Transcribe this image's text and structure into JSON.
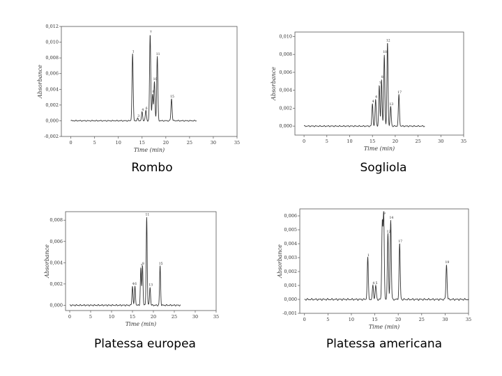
{
  "captions": [
    "Rombo",
    "Sogliola",
    "Platessa europea",
    "Platessa americana"
  ],
  "chart_data": [
    {
      "type": "line",
      "caption": "Rombo",
      "xlabel": "Time (min)",
      "ylabel": "Absorbance",
      "xlim": [
        -2,
        35
      ],
      "ylim": [
        -0.002,
        0.012
      ],
      "xticks": [
        0,
        5,
        10,
        15,
        20,
        25,
        30,
        35
      ],
      "yticks": [
        -0.002,
        0.0,
        0.002,
        0.004,
        0.006,
        0.008,
        0.01,
        0.012
      ],
      "ytick_labels": [
        "-0,002",
        "0,000",
        "0,002",
        "0,004",
        "0,006",
        "0,008",
        "0,010",
        "0,012"
      ],
      "trace_range": [
        0,
        26.5
      ],
      "baseline": 0.0,
      "peaks": [
        {
          "label": "1",
          "x": 13.0,
          "y": 0.0085
        },
        {
          "label": "3",
          "x": 14.1,
          "y": 0.0003
        },
        {
          "label": "4",
          "x": 15.0,
          "y": 0.0011
        },
        {
          "label": "6",
          "x": 15.8,
          "y": 0.0013
        },
        {
          "label": "7",
          "x": 16.7,
          "y": 0.011
        },
        {
          "label": "8",
          "x": 17.2,
          "y": 0.0034
        },
        {
          "label": "10",
          "x": 17.6,
          "y": 0.005
        },
        {
          "label": "11",
          "x": 18.2,
          "y": 0.0082
        },
        {
          "label": "15",
          "x": 21.2,
          "y": 0.0028
        }
      ]
    },
    {
      "type": "line",
      "caption": "Sogliola",
      "xlabel": "Time (min)",
      "ylabel": "Absorbance",
      "xlim": [
        -2,
        35
      ],
      "ylim": [
        -0.001,
        0.0105
      ],
      "xticks": [
        0,
        5,
        10,
        15,
        20,
        25,
        30,
        35
      ],
      "yticks": [
        0.0,
        0.002,
        0.004,
        0.006,
        0.008,
        0.01
      ],
      "ytick_labels": [
        "0,000",
        "0,002",
        "0,004",
        "0,006",
        "0,008",
        "0,010"
      ],
      "trace_range": [
        0,
        26.5
      ],
      "baseline": 0.0,
      "peaks": [
        {
          "label": "4",
          "x": 15.0,
          "y": 0.0025
        },
        {
          "label": "6",
          "x": 15.7,
          "y": 0.003
        },
        {
          "label": "7",
          "x": 16.5,
          "y": 0.0045
        },
        {
          "label": "8",
          "x": 17.0,
          "y": 0.0052
        },
        {
          "label": "10",
          "x": 17.6,
          "y": 0.008
        },
        {
          "label": "12",
          "x": 18.3,
          "y": 0.0093
        },
        {
          "label": "13",
          "x": 19.0,
          "y": 0.0022
        },
        {
          "label": "17",
          "x": 20.8,
          "y": 0.0035
        }
      ]
    },
    {
      "type": "line",
      "caption": "Platessa europea",
      "xlabel": "Time (min)",
      "ylabel": "Absorbance",
      "xlim": [
        -1,
        35
      ],
      "ylim": [
        -0.0005,
        0.0088
      ],
      "xticks": [
        0,
        5,
        10,
        15,
        20,
        25,
        30,
        35
      ],
      "yticks": [
        0.0,
        0.002,
        0.004,
        0.006,
        0.008
      ],
      "ytick_labels": [
        "0,000",
        "0,002",
        "0,004",
        "0,006",
        "0,008"
      ],
      "trace_range": [
        0,
        26.5
      ],
      "baseline": 0.0,
      "peaks": [
        {
          "label": "4",
          "x": 15.0,
          "y": 0.0018
        },
        {
          "label": "6",
          "x": 15.6,
          "y": 0.0018
        },
        {
          "label": "7",
          "x": 17.0,
          "y": 0.0035
        },
        {
          "label": "8",
          "x": 17.4,
          "y": 0.0037
        },
        {
          "label": "11",
          "x": 18.4,
          "y": 0.0083
        },
        {
          "label": "13",
          "x": 19.2,
          "y": 0.0017
        },
        {
          "label": "15",
          "x": 21.6,
          "y": 0.0037
        }
      ]
    },
    {
      "type": "line",
      "caption": "Platessa americana",
      "xlabel": "Time (min)",
      "ylabel": "Absorbance",
      "xlim": [
        -1,
        35
      ],
      "ylim": [
        -0.001,
        0.0065
      ],
      "xticks": [
        0,
        5,
        10,
        15,
        20,
        25,
        30,
        35
      ],
      "yticks": [
        -0.001,
        0.0,
        0.001,
        0.002,
        0.003,
        0.004,
        0.005,
        0.006
      ],
      "ytick_labels": [
        "-0,001",
        "0,000",
        "0,001",
        "0,002",
        "0,003",
        "0,004",
        "0,005",
        "0,006"
      ],
      "trace_range": [
        0,
        35
      ],
      "baseline": 0.0,
      "peaks": [
        {
          "label": "1",
          "x": 13.5,
          "y": 0.003
        },
        {
          "label": "4",
          "x": 14.6,
          "y": 0.001
        },
        {
          "label": "5",
          "x": 15.2,
          "y": 0.001
        },
        {
          "label": "8",
          "x": 16.6,
          "y": 0.0055
        },
        {
          "label": "9",
          "x": 16.9,
          "y": 0.006
        },
        {
          "label": "12",
          "x": 17.8,
          "y": 0.0047
        },
        {
          "label": "14",
          "x": 18.4,
          "y": 0.0057
        },
        {
          "label": "17",
          "x": 20.3,
          "y": 0.004
        },
        {
          "label": "19",
          "x": 30.3,
          "y": 0.0025
        }
      ]
    }
  ]
}
